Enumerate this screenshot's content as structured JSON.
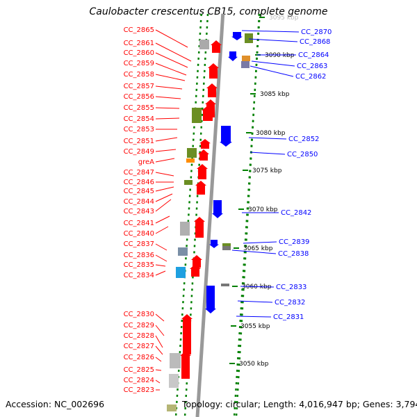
{
  "title": "Caulobacter crescentus CB15, complete genome",
  "accession_text": "Accession: NC_002696",
  "topology_text": "Topology: circular; Length: 4,016,947 bp; Genes: 3,794",
  "colors": {
    "forward": "#ff0000",
    "reverse": "#0000ff",
    "backbone": "#999999",
    "tick": "#008000"
  },
  "scale_labels": [
    "3095 kbp",
    "3090 kbp",
    "3085 kbp",
    "3080 kbp",
    "3075 kbp",
    "3070 kbp",
    "3065 kbp",
    "3060 kbp",
    "3055 kbp",
    "3050 kbp"
  ],
  "left_genes": [
    "CC_2865",
    "CC_2861",
    "CC_2860",
    "CC_2859",
    "CC_2858",
    "CC_2857",
    "CC_2856",
    "CC_2855",
    "CC_2854",
    "CC_2853",
    "CC_2851",
    "CC_2849",
    "greA",
    "CC_2847",
    "CC_2846",
    "CC_2845",
    "CC_2844",
    "CC_2843",
    "CC_2841",
    "CC_2840",
    "CC_2837",
    "CC_2836",
    "CC_2835",
    "CC_2834",
    "CC_2830",
    "CC_2829",
    "CC_2828",
    "CC_2827",
    "CC_2826",
    "CC_2825",
    "CC_2824",
    "CC_2823"
  ],
  "right_genes": [
    "CC_2870",
    "CC_2868",
    "CC_2864",
    "CC_2863",
    "CC_2862",
    "CC_2852",
    "CC_2850",
    "CC_2842",
    "CC_2839",
    "CC_2838",
    "CC_2833",
    "CC_2832",
    "CC_2831"
  ]
}
